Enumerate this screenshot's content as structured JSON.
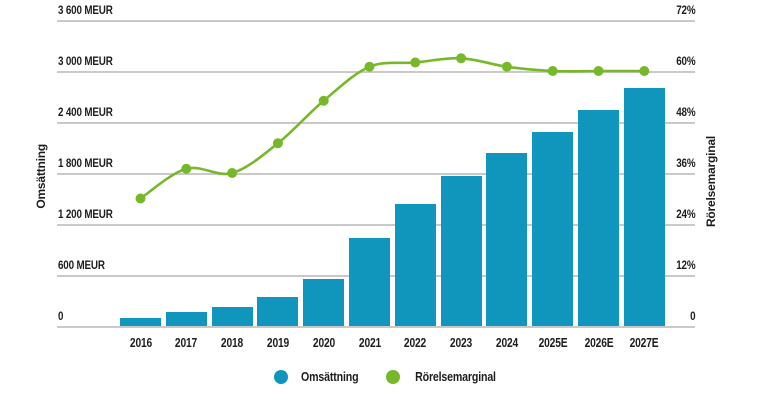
{
  "chart_data": {
    "type": "bar",
    "subtype": "combo-bar-line",
    "categories": [
      "2016",
      "2017",
      "2018",
      "2019",
      "2020",
      "2021",
      "2022",
      "2023",
      "2024",
      "2025E",
      "2026E",
      "2027E"
    ],
    "series": [
      {
        "name": "Omsättning",
        "type": "bar",
        "axis": "left",
        "unit": "MEUR",
        "color": "#1095bd",
        "values": [
          95,
          165,
          225,
          340,
          550,
          1040,
          1440,
          1760,
          2040,
          2280,
          2540,
          2800
        ]
      },
      {
        "name": "Rörelsemarginal",
        "type": "line",
        "axis": "right",
        "unit": "%",
        "color": "#76b82a",
        "values": [
          30,
          37,
          36,
          43,
          53,
          61,
          62,
          63,
          61,
          60,
          60,
          60
        ]
      }
    ],
    "left_axis": {
      "label": "Omsättning",
      "min": 0,
      "max": 3600,
      "step": 600,
      "tick_labels": [
        "3 600 MEUR",
        "3 000 MEUR",
        "2 400 MEUR",
        "1 800 MEUR",
        "1 200 MEUR",
        "600 MEUR",
        "0"
      ]
    },
    "right_axis": {
      "label": "Rörelsemarginal",
      "min": 0,
      "max": 72,
      "step": 12,
      "tick_labels": [
        "72%",
        "60%",
        "48%",
        "36%",
        "24%",
        "12%",
        "0"
      ]
    },
    "grid": true,
    "legend_position": "bottom",
    "legend": [
      {
        "label": "Omsättning",
        "color": "#1095bd"
      },
      {
        "label": "Rörelsemarginal",
        "color": "#76b82a"
      }
    ]
  },
  "colors": {
    "background": "#ffffff",
    "gridline": "#c9c9c9",
    "text": "#1d1d1b",
    "bar": "#1095bd",
    "line": "#76b82a"
  }
}
